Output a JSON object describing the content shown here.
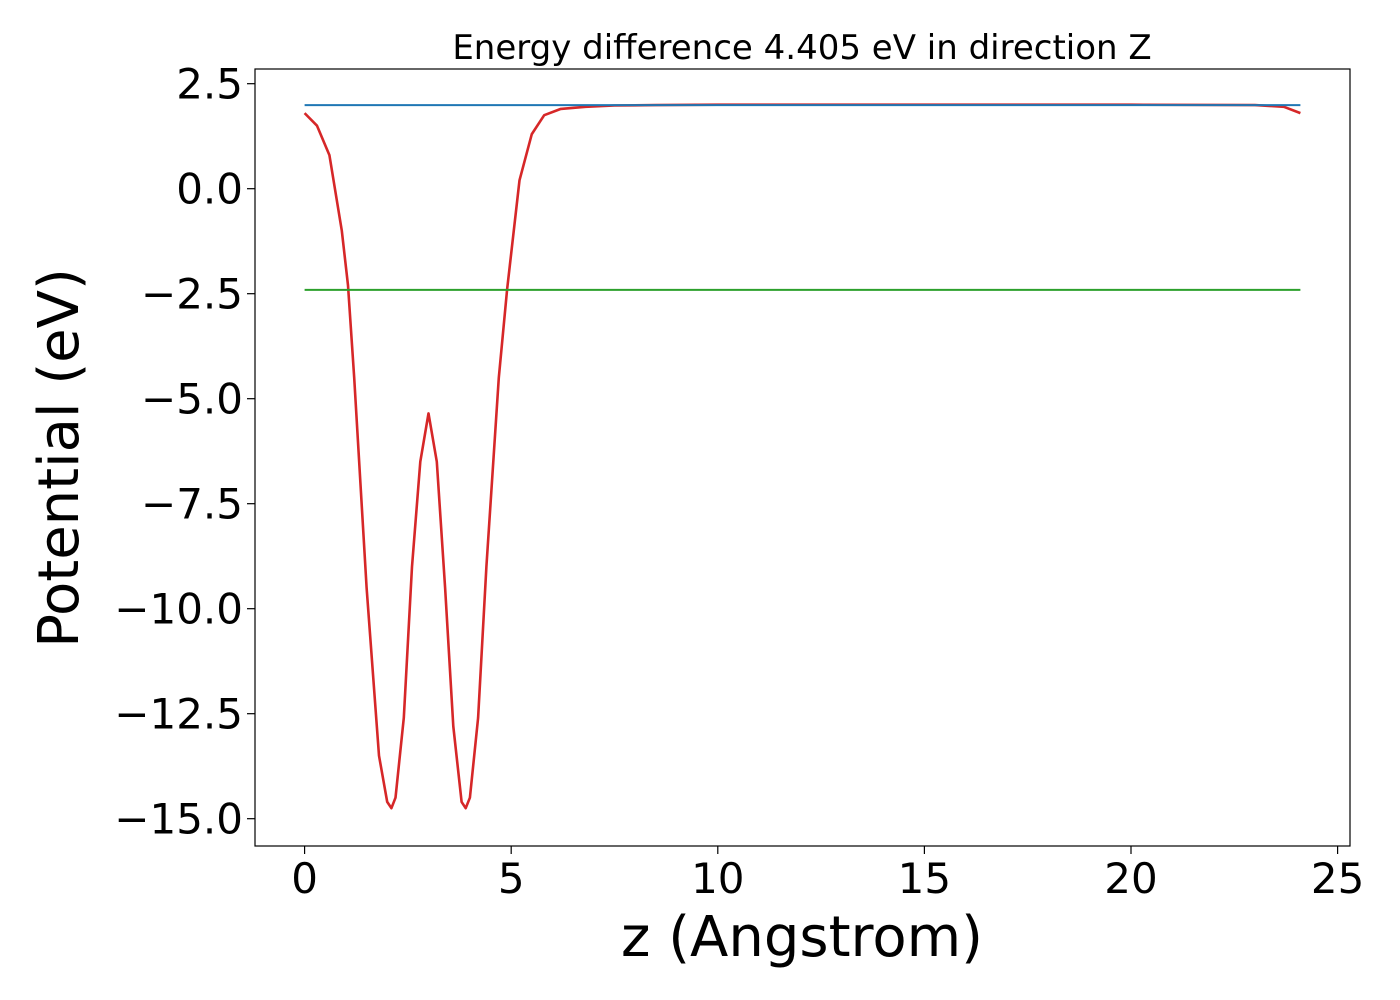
{
  "chart_data": {
    "type": "line",
    "title": "Energy difference 4.405 eV in direction Z",
    "xlabel": "z (Angstrom)",
    "ylabel": "Potential (eV)",
    "xlim": [
      -1.2,
      25.3
    ],
    "ylim": [
      -15.65,
      2.85
    ],
    "grid": false,
    "xticks": [
      0,
      5,
      10,
      15,
      20,
      25
    ],
    "xtick_labels": [
      "0",
      "5",
      "10",
      "15",
      "20",
      "25"
    ],
    "yticks": [
      2.5,
      0.0,
      -2.5,
      -5.0,
      -7.5,
      -10.0,
      -12.5,
      -15.0
    ],
    "ytick_labels": [
      "2.5",
      "0.0",
      "−2.5",
      "−5.0",
      "−7.5",
      "−10.0",
      "−12.5",
      "−15.0"
    ],
    "series": [
      {
        "color": "#d62728",
        "style": "solid",
        "x": [
          0,
          0.3,
          0.6,
          0.9,
          1.05,
          1.2,
          1.5,
          1.8,
          2.0,
          2.1,
          2.2,
          2.4,
          2.6,
          2.8,
          3.0,
          3.2,
          3.4,
          3.6,
          3.8,
          3.9,
          4.0,
          4.2,
          4.4,
          4.7,
          4.9,
          5.2,
          5.5,
          5.8,
          6.2,
          6.8,
          7.5,
          8.5,
          10,
          15,
          20,
          23,
          23.7,
          24.1
        ],
        "y": [
          1.8,
          1.5,
          0.8,
          -1.0,
          -2.3,
          -4.5,
          -9.5,
          -13.5,
          -14.6,
          -14.75,
          -14.5,
          -12.6,
          -9.0,
          -6.5,
          -5.35,
          -6.5,
          -9.5,
          -12.8,
          -14.6,
          -14.75,
          -14.5,
          -12.6,
          -9.0,
          -4.5,
          -2.4,
          0.2,
          1.3,
          1.75,
          1.9,
          1.95,
          1.98,
          1.99,
          2.0,
          2.0,
          2.0,
          1.99,
          1.95,
          1.8
        ]
      },
      {
        "color": "#1f77b4",
        "style": "solid",
        "x": [
          0,
          24.1
        ],
        "y": [
          1.99,
          1.99
        ]
      },
      {
        "color": "#2ca02c",
        "style": "solid",
        "x": [
          0,
          24.1
        ],
        "y": [
          -2.41,
          -2.41
        ]
      }
    ]
  }
}
